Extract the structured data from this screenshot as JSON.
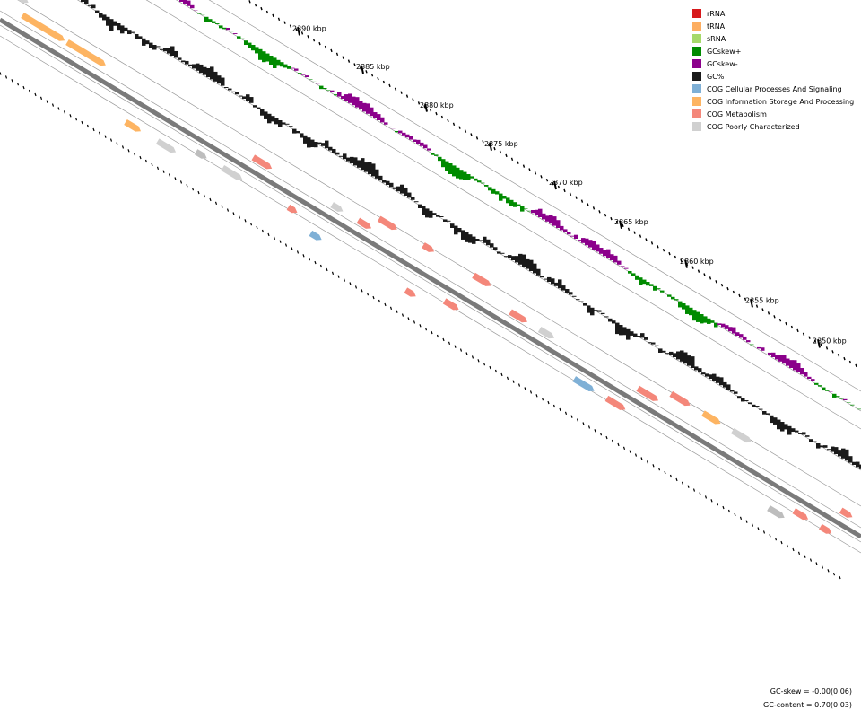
{
  "legend": [
    {
      "label": "rRNA",
      "color": "#d7191c"
    },
    {
      "label": "tRNA",
      "color": "#fdae61"
    },
    {
      "label": "sRNA",
      "color": "#a6d96a"
    },
    {
      "label": "GCskew+",
      "color": "#008b00"
    },
    {
      "label": "GCskew-",
      "color": "#8b008b"
    },
    {
      "label": "GC%",
      "color": "#1a1a1a"
    },
    {
      "label": "COG Cellular Processes And Signaling",
      "color": "#7fb0d6"
    },
    {
      "label": "COG Information Storage And Processing",
      "color": "#fdb462"
    },
    {
      "label": "COG Metabolism",
      "color": "#f4877a"
    },
    {
      "label": "COG Poorly Characterized",
      "color": "#d0d0d0"
    }
  ],
  "position_labels": [
    "2390 kbp",
    "2385 kbp",
    "2380 kbp",
    "2375 kbp",
    "2370 kbp",
    "2365 kbp",
    "2360 kbp",
    "2355 kbp",
    "2350 kbp"
  ],
  "stats": {
    "gc_skew": "GC-skew = -0.00(0.06)",
    "gc_content": "GC-content = 0.70(0.03)"
  },
  "colors": {
    "backbone": "#7a7a7a",
    "ring_line": "#9a9a9a",
    "other_gene": "#bdbdbd"
  }
}
